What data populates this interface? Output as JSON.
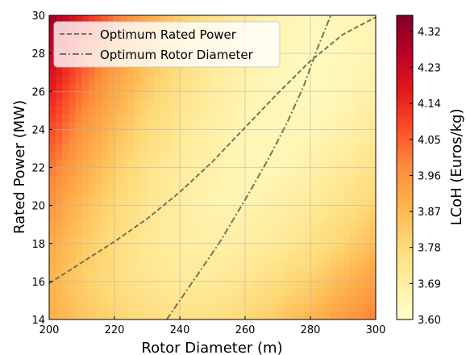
{
  "chart_data": {
    "type": "heatmap",
    "xlabel": "Rotor Diameter (m)",
    "ylabel": "Rated Power (MW)",
    "xlim": [
      200,
      300
    ],
    "ylim": [
      14,
      30
    ],
    "x_ticks": [
      "200",
      "220",
      "240",
      "260",
      "280",
      "300"
    ],
    "y_ticks": [
      "14",
      "16",
      "18",
      "20",
      "22",
      "24",
      "26",
      "28",
      "30"
    ],
    "grid": true,
    "colorbar": {
      "label": "LCoH (Euros/kg)",
      "range": [
        3.6,
        4.36
      ],
      "ticks": [
        "3.60",
        "3.69",
        "3.78",
        "3.87",
        "3.96",
        "4.05",
        "4.14",
        "4.23",
        "4.32"
      ],
      "colors": [
        "#ffffcc",
        "#ffeda0",
        "#fed976",
        "#feb24c",
        "#fd8d3c",
        "#fc4e2a",
        "#e31a1c",
        "#bd0026",
        "#800026"
      ]
    },
    "legend": {
      "placement": "top-left"
    },
    "series": [
      {
        "name": "Optimum Rated Power",
        "style": "dashed",
        "x": [
          200,
          210,
          220,
          230,
          240,
          250,
          260,
          270,
          280,
          290,
          300
        ],
        "y": [
          15.9,
          17.0,
          18.1,
          19.3,
          20.7,
          22.3,
          24.1,
          25.9,
          27.6,
          29.0,
          29.9
        ]
      },
      {
        "name": "Optimum Rotor Diameter",
        "style": "dashdot",
        "x": [
          236,
          244,
          252,
          260,
          267,
          273,
          278,
          282,
          286,
          290
        ],
        "y": [
          14.0,
          16.0,
          18.0,
          20.3,
          22.4,
          24.4,
          26.3,
          28.2,
          29.9,
          31.5
        ]
      }
    ],
    "field_samples": {
      "x": [
        200,
        210,
        220,
        230,
        240,
        250,
        260,
        270,
        280,
        290,
        300
      ],
      "y": [
        14,
        16,
        18,
        20,
        22,
        24,
        26,
        28,
        30
      ],
      "z": [
        [
          3.9,
          3.84,
          3.8,
          3.77,
          3.75,
          3.76,
          3.79,
          3.83,
          3.88,
          3.94,
          4.0
        ],
        [
          3.88,
          3.82,
          3.77,
          3.73,
          3.71,
          3.71,
          3.73,
          3.77,
          3.81,
          3.87,
          3.93
        ],
        [
          3.91,
          3.83,
          3.77,
          3.72,
          3.69,
          3.68,
          3.69,
          3.71,
          3.75,
          3.8,
          3.86
        ],
        [
          3.96,
          3.86,
          3.79,
          3.73,
          3.69,
          3.66,
          3.66,
          3.68,
          3.71,
          3.75,
          3.8
        ],
        [
          4.02,
          3.91,
          3.82,
          3.75,
          3.7,
          3.67,
          3.65,
          3.65,
          3.67,
          3.71,
          3.75
        ],
        [
          4.09,
          3.96,
          3.86,
          3.78,
          3.72,
          3.68,
          3.65,
          3.64,
          3.65,
          3.67,
          3.71
        ],
        [
          4.17,
          4.02,
          3.91,
          3.82,
          3.75,
          3.7,
          3.66,
          3.64,
          3.63,
          3.65,
          3.68
        ],
        [
          4.25,
          4.09,
          3.96,
          3.86,
          3.78,
          3.72,
          3.68,
          3.65,
          3.63,
          3.64,
          3.66
        ],
        [
          4.33,
          4.16,
          4.02,
          3.91,
          3.82,
          3.75,
          3.7,
          3.66,
          3.64,
          3.64,
          3.65
        ]
      ]
    }
  }
}
